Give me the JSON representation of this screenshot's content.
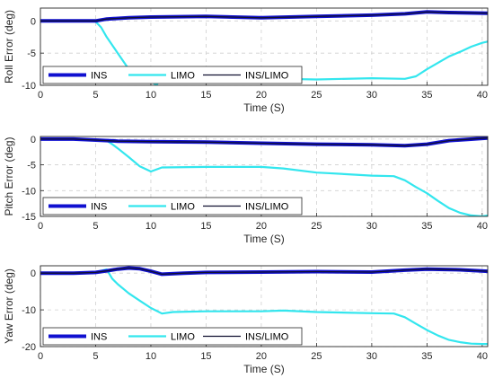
{
  "colors": {
    "ins": "#1010d0",
    "limo": "#33e6ee",
    "ins_limo": "#101030",
    "grid": "#d0d0d0",
    "axes": "#262626"
  },
  "chart_data": [
    {
      "type": "line",
      "xlabel": "Time (S)",
      "ylabel": "Roll Error (deg)",
      "xlim": [
        0,
        40.5
      ],
      "ylim": [
        -10,
        2
      ],
      "xticks": [
        0,
        5,
        10,
        15,
        20,
        25,
        30,
        35,
        40
      ],
      "yticks": [
        0,
        -5,
        -10
      ],
      "grid": true,
      "legend": "bottom-left",
      "series": [
        {
          "name": "INS",
          "color": "#1010d0",
          "x": [
            0,
            3,
            5,
            6,
            8,
            10,
            15,
            20,
            25,
            30,
            33,
            35,
            37,
            40.5
          ],
          "y": [
            0,
            0,
            0,
            0.3,
            0.5,
            0.6,
            0.7,
            0.5,
            0.7,
            0.9,
            1.1,
            1.4,
            1.3,
            1.2
          ]
        },
        {
          "name": "LIMO",
          "color": "#33e6ee",
          "x": [
            0,
            4,
            5,
            5.5,
            6,
            7,
            8,
            9,
            10,
            10.5,
            11,
            15,
            20,
            22,
            25,
            30,
            33,
            34,
            35,
            36,
            37,
            38,
            39,
            40,
            40.5
          ],
          "y": [
            0,
            0,
            -0.1,
            -1,
            -2.5,
            -5,
            -7.5,
            -8.5,
            -9.3,
            -10,
            -8.7,
            -8.8,
            -8.8,
            -9,
            -9.1,
            -8.9,
            -9,
            -8.6,
            -7.5,
            -6.5,
            -5.5,
            -4.8,
            -4,
            -3.4,
            -3.2
          ]
        },
        {
          "name": "INS/LIMO",
          "color": "#101030",
          "x": [
            0,
            3,
            5,
            6,
            8,
            10,
            15,
            20,
            25,
            30,
            33,
            35,
            37,
            40.5
          ],
          "y": [
            0,
            0,
            0,
            0.3,
            0.5,
            0.6,
            0.7,
            0.5,
            0.7,
            0.9,
            1.1,
            1.4,
            1.3,
            1.2
          ]
        }
      ]
    },
    {
      "type": "line",
      "xlabel": "Time (S)",
      "ylabel": "Pitch Error (deg)",
      "xlim": [
        0,
        40.5
      ],
      "ylim": [
        -15,
        0.5
      ],
      "xticks": [
        0,
        5,
        10,
        15,
        20,
        25,
        30,
        35,
        40
      ],
      "yticks": [
        0,
        -5,
        -10,
        -15
      ],
      "grid": true,
      "legend": "bottom-left",
      "series": [
        {
          "name": "INS",
          "color": "#1010d0",
          "x": [
            0,
            3,
            5,
            7,
            10,
            15,
            20,
            25,
            30,
            33,
            35,
            37,
            40.5
          ],
          "y": [
            0,
            0,
            -0.2,
            -0.4,
            -0.5,
            -0.6,
            -0.8,
            -1,
            -1.1,
            -1.3,
            -1,
            -0.3,
            0.2
          ]
        },
        {
          "name": "LIMO",
          "color": "#33e6ee",
          "x": [
            0,
            3,
            5,
            6,
            6.5,
            7,
            8,
            9,
            10,
            11,
            15,
            20,
            22,
            25,
            26,
            30,
            32,
            33,
            34,
            35,
            36,
            37,
            38,
            39,
            40,
            40.5
          ],
          "y": [
            0,
            0,
            -0.1,
            -0.3,
            -1,
            -1.8,
            -3.5,
            -5.3,
            -6.3,
            -5.5,
            -5.4,
            -5.4,
            -5.7,
            -6.5,
            -6.6,
            -7.1,
            -7.2,
            -8,
            -9.3,
            -10.5,
            -12,
            -13.4,
            -14.3,
            -14.8,
            -15,
            -14.8
          ]
        },
        {
          "name": "INS/LIMO",
          "color": "#101030",
          "x": [
            0,
            3,
            5,
            7,
            10,
            15,
            20,
            25,
            30,
            33,
            35,
            37,
            40.5
          ],
          "y": [
            0,
            0,
            -0.2,
            -0.4,
            -0.5,
            -0.6,
            -0.8,
            -1,
            -1.1,
            -1.3,
            -1,
            -0.3,
            0.2
          ]
        }
      ]
    },
    {
      "type": "line",
      "xlabel": "Time (S)",
      "ylabel": "Yaw Error (deg)",
      "xlim": [
        0,
        40.5
      ],
      "ylim": [
        -20,
        2
      ],
      "xticks": [
        0,
        5,
        10,
        15,
        20,
        25,
        30,
        35,
        40
      ],
      "yticks": [
        0,
        -10,
        -20
      ],
      "grid": true,
      "legend": "bottom-left",
      "series": [
        {
          "name": "INS",
          "color": "#1010d0",
          "x": [
            0,
            3,
            5,
            6,
            7,
            8,
            9,
            10,
            11,
            13,
            15,
            20,
            25,
            30,
            33,
            35,
            38,
            40.5
          ],
          "y": [
            0,
            0,
            0.2,
            0.6,
            1.1,
            1.4,
            1.2,
            0.5,
            -0.3,
            0,
            0.2,
            0.3,
            0.4,
            0.3,
            0.8,
            1.1,
            0.9,
            0.5
          ]
        },
        {
          "name": "LIMO",
          "color": "#33e6ee",
          "x": [
            0,
            3,
            5,
            6,
            6.5,
            7,
            8,
            9,
            10,
            11,
            12,
            15,
            20,
            22,
            25,
            30,
            32,
            33,
            34,
            35,
            36,
            37,
            38,
            39,
            40,
            40.5
          ],
          "y": [
            0,
            0,
            0.3,
            1,
            -1.5,
            -3,
            -5.5,
            -7.5,
            -9.5,
            -11,
            -10.6,
            -10.4,
            -10.4,
            -10.2,
            -10.6,
            -10.9,
            -11,
            -12,
            -13.8,
            -15.5,
            -17,
            -18.2,
            -18.8,
            -19.2,
            -19.3,
            -19.3
          ]
        },
        {
          "name": "INS/LIMO",
          "color": "#101030",
          "x": [
            0,
            3,
            5,
            6,
            7,
            8,
            9,
            10,
            11,
            13,
            15,
            20,
            25,
            30,
            33,
            35,
            38,
            40.5
          ],
          "y": [
            0,
            0,
            0.2,
            0.6,
            1.1,
            1.4,
            1.2,
            0.5,
            -0.3,
            0,
            0.2,
            0.3,
            0.4,
            0.3,
            0.8,
            1.1,
            0.9,
            0.5
          ]
        }
      ]
    }
  ]
}
